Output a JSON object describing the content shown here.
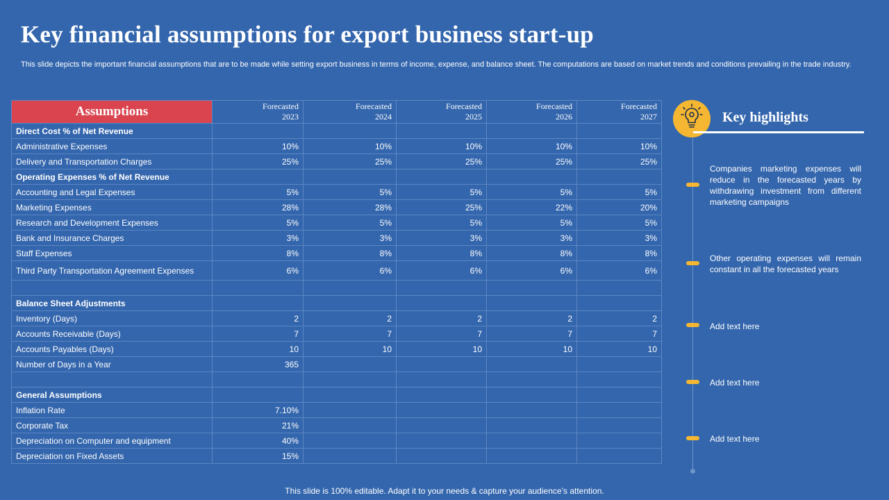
{
  "page": {
    "title": "Key financial assumptions for export business start-up",
    "subtitle": "This slide depicts the important financial assumptions that are to be made while setting export business in terms of income, expense, and balance sheet. The computations are based on market trends and conditions prevailing in the trade industry.",
    "footer": "This slide is 100% editable. Adapt it to your needs & capture your audience’s attention."
  },
  "table": {
    "header_label": "Assumptions",
    "columns": [
      {
        "top": "Forecasted",
        "year": "2023"
      },
      {
        "top": "Forecasted",
        "year": "2024"
      },
      {
        "top": "Forecasted",
        "year": "2025"
      },
      {
        "top": "Forecasted",
        "year": "2026"
      },
      {
        "top": "Forecasted",
        "year": "2027"
      }
    ],
    "rows": [
      {
        "label": "Direct Cost % of Net Revenue",
        "section": true,
        "values": [
          "",
          "",
          "",
          "",
          ""
        ]
      },
      {
        "label": "Administrative Expenses",
        "values": [
          "10%",
          "10%",
          "10%",
          "10%",
          "10%"
        ]
      },
      {
        "label": "Delivery and Transportation Charges",
        "values": [
          "25%",
          "25%",
          "25%",
          "25%",
          "25%"
        ]
      },
      {
        "label": "Operating Expenses % of Net Revenue",
        "section": true,
        "values": [
          "",
          "",
          "",
          "",
          ""
        ]
      },
      {
        "label": "Accounting and Legal Expenses",
        "values": [
          "5%",
          "5%",
          "5%",
          "5%",
          "5%"
        ]
      },
      {
        "label": "Marketing Expenses",
        "values": [
          "28%",
          "28%",
          "25%",
          "22%",
          "20%"
        ]
      },
      {
        "label": "Research and Development Expenses",
        "values": [
          "5%",
          "5%",
          "5%",
          "5%",
          "5%"
        ]
      },
      {
        "label": "Bank and Insurance Charges",
        "values": [
          "3%",
          "3%",
          "3%",
          "3%",
          "3%"
        ]
      },
      {
        "label": "Staff Expenses",
        "values": [
          "8%",
          "8%",
          "8%",
          "8%",
          "8%"
        ]
      },
      {
        "label": "Third Party Transportation Agreement Expenses",
        "tall": true,
        "values": [
          "6%",
          "6%",
          "6%",
          "6%",
          "6%"
        ]
      },
      {
        "label": "",
        "values": [
          "",
          "",
          "",
          "",
          ""
        ]
      },
      {
        "label": "Balance Sheet Adjustments",
        "section": true,
        "values": [
          "",
          "",
          "",
          "",
          ""
        ]
      },
      {
        "label": "Inventory (Days)",
        "values": [
          "2",
          "2",
          "2",
          "2",
          "2"
        ]
      },
      {
        "label": "Accounts Receivable (Days)",
        "values": [
          "7",
          "7",
          "7",
          "7",
          "7"
        ]
      },
      {
        "label": "Accounts Payables (Days)",
        "values": [
          "10",
          "10",
          "10",
          "10",
          "10"
        ]
      },
      {
        "label": "Number of Days in a Year",
        "values": [
          "365",
          "",
          "",
          "",
          ""
        ]
      },
      {
        "label": "",
        "values": [
          "",
          "",
          "",
          "",
          ""
        ]
      },
      {
        "label": "General Assumptions",
        "section": true,
        "values": [
          "",
          "",
          "",
          "",
          ""
        ]
      },
      {
        "label": "Inflation Rate",
        "values": [
          "7.10%",
          "",
          "",
          "",
          ""
        ]
      },
      {
        "label": "Corporate Tax",
        "values": [
          "21%",
          "",
          "",
          "",
          ""
        ]
      },
      {
        "label": "Depreciation on Computer and equipment",
        "values": [
          "40%",
          "",
          "",
          "",
          ""
        ]
      },
      {
        "label": "Depreciation on Fixed Assets",
        "values": [
          "15%",
          "",
          "",
          "",
          ""
        ]
      }
    ]
  },
  "highlights": {
    "title": "Key highlights",
    "icon": "lightbulb-gear-icon",
    "items": [
      "Companies marketing expenses will reduce in the forecasted years by withdrawing investment from different marketing campaigns",
      "Other operating expenses will remain constant in all the forecasted years",
      "Add text here",
      "Add text here",
      "Add text here"
    ]
  },
  "colors": {
    "background": "#3466ad",
    "header_red": "#d9444e",
    "accent_yellow": "#f5b731"
  }
}
